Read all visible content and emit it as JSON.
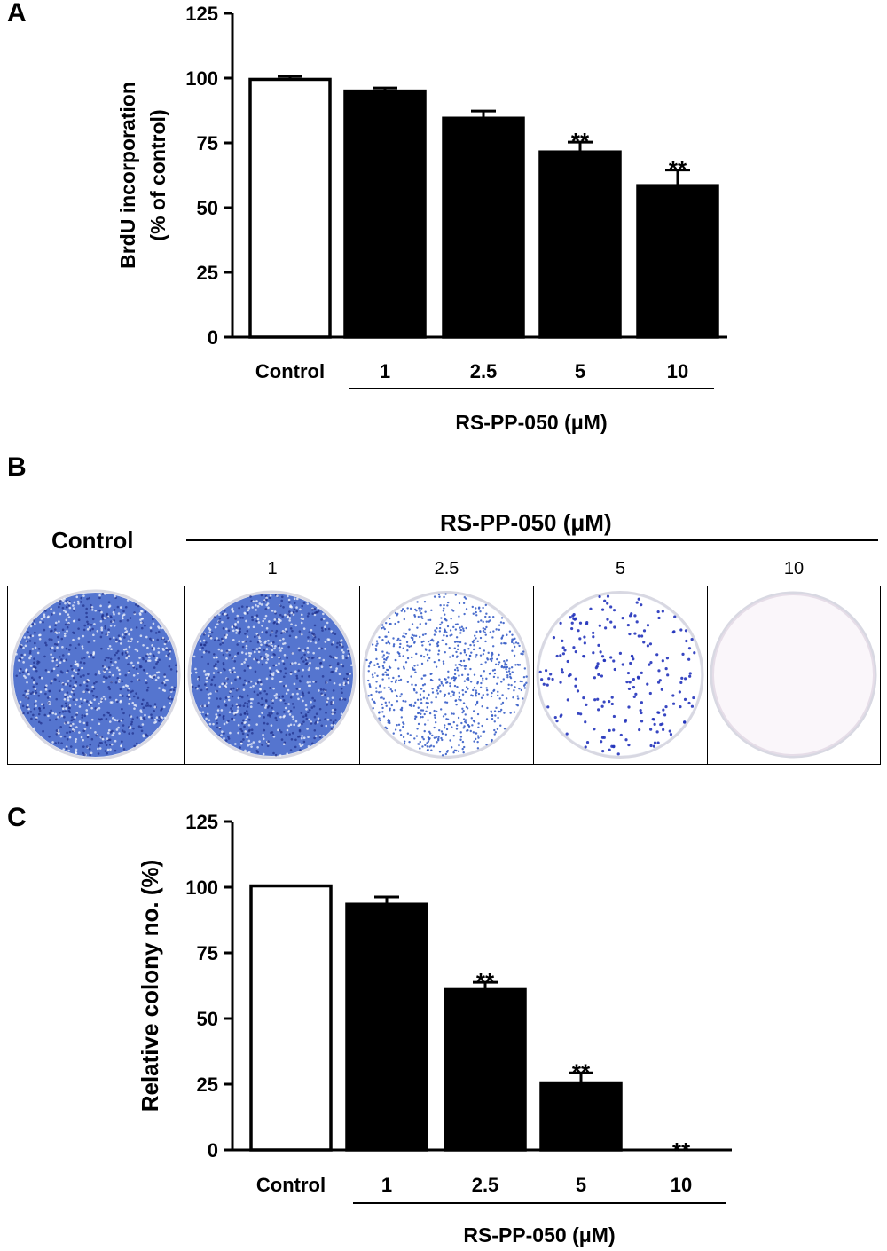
{
  "panels": {
    "a_letter": "A",
    "b_letter": "B",
    "c_letter": "C"
  },
  "chart_data": [
    {
      "type": "bar",
      "title": "",
      "ylabel_line1": "BrdU incorporation",
      "ylabel_line2": "(% of control)",
      "xlabel": "RS-PP-050 (μM)",
      "categories": [
        "Control",
        "1",
        "2.5",
        "5",
        "10"
      ],
      "values": [
        99.5,
        95,
        84.5,
        71.5,
        58.5
      ],
      "errors": [
        1.2,
        1.2,
        2.8,
        3.8,
        6.0
      ],
      "significance": [
        "",
        "",
        "",
        "**",
        "**"
      ],
      "fills": [
        "#ffffff",
        "#000000",
        "#000000",
        "#000000",
        "#000000"
      ],
      "ylim": [
        0,
        125
      ],
      "yticks": [
        0,
        25,
        50,
        75,
        100,
        125
      ],
      "grid": false,
      "legend": "none"
    },
    {
      "type": "bar",
      "title": "",
      "ylabel": "Relative colony no. (%)",
      "xlabel": "RS-PP-050 (μM)",
      "categories": [
        "Control",
        "1",
        "2.5",
        "5",
        "10"
      ],
      "values": [
        100.5,
        93.5,
        61,
        25.5,
        0
      ],
      "errors": [
        0,
        2.8,
        2.8,
        3.8,
        0
      ],
      "significance": [
        "",
        "",
        "**",
        "**",
        "**"
      ],
      "fills": [
        "#ffffff",
        "#000000",
        "#000000",
        "#000000",
        "#000000"
      ],
      "ylim": [
        0,
        125
      ],
      "yticks": [
        0,
        25,
        50,
        75,
        100,
        125
      ],
      "grid": false,
      "legend": "none"
    }
  ],
  "panel_b": {
    "control_label": "Control",
    "group_label": "RS-PP-050 (μM)",
    "dishes": [
      {
        "label": "",
        "density": 1.0
      },
      {
        "label": "1",
        "density": 0.95
      },
      {
        "label": "2.5",
        "density": 0.45
      },
      {
        "label": "5",
        "density": 0.12
      },
      {
        "label": "10",
        "density": 0.0
      }
    ],
    "stain_color": "#3a5fc8"
  }
}
